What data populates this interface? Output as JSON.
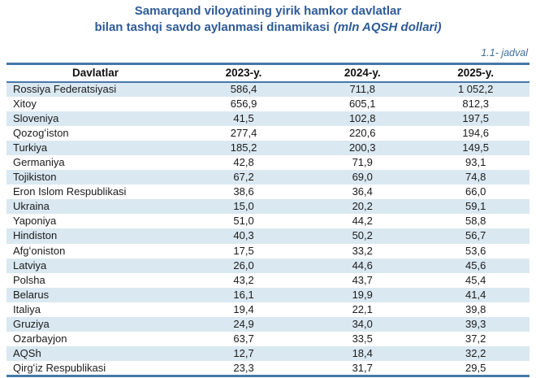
{
  "header": {
    "title_line1": "Samarqand viloyatining yirik hamkor davlatlar",
    "title_line2": "bilan tashqi savdo aylanmasi dinamikasi",
    "title_line2_em": "(mln AQSH dollari)",
    "table_label": "1.1- jadval"
  },
  "colors": {
    "title_blue": "#2E5B97",
    "border_blue": "#4678A8",
    "stripe_blue": "#DAE8F1"
  },
  "chart_data": {
    "type": "table",
    "title": "Samarqand viloyatining yirik hamkor davlatlar bilan tashqi savdo aylanmasi dinamikasi (mln AQSH dollari)",
    "columns": [
      "Davlatlar",
      "2023-y.",
      "2024-y.",
      "2025-y."
    ],
    "rows": [
      {
        "country": "Rossiya Federatsiyasi",
        "values": [
          "586,4",
          "711,8",
          "1 052,2"
        ]
      },
      {
        "country": "Xitoy",
        "values": [
          "656,9",
          "605,1",
          "812,3"
        ]
      },
      {
        "country": "Sloveniya",
        "values": [
          "41,5",
          "102,8",
          "197,5"
        ]
      },
      {
        "country": "Qozogʻiston",
        "values": [
          "277,4",
          "220,6",
          "194,6"
        ]
      },
      {
        "country": "Turkiya",
        "values": [
          "185,2",
          "200,3",
          "149,5"
        ]
      },
      {
        "country": "Germaniya",
        "values": [
          "42,8",
          "71,9",
          "93,1"
        ]
      },
      {
        "country": "Tojikiston",
        "values": [
          "67,2",
          "69,0",
          "74,8"
        ]
      },
      {
        "country": "Eron Islom Respublikasi",
        "values": [
          "38,6",
          "36,4",
          "66,0"
        ]
      },
      {
        "country": "Ukraina",
        "values": [
          "15,0",
          "20,2",
          "59,1"
        ]
      },
      {
        "country": "Yaponiya",
        "values": [
          "51,0",
          "44,2",
          "58,8"
        ]
      },
      {
        "country": "Hindiston",
        "values": [
          "40,3",
          "50,2",
          "56,7"
        ]
      },
      {
        "country": "Afgʻoniston",
        "values": [
          "17,5",
          "33,2",
          "53,6"
        ]
      },
      {
        "country": "Latviya",
        "values": [
          "26,0",
          "44,6",
          "45,6"
        ]
      },
      {
        "country": "Polsha",
        "values": [
          "43,2",
          "43,7",
          "45,4"
        ]
      },
      {
        "country": "Belarus",
        "values": [
          "16,1",
          "19,9",
          "41,4"
        ]
      },
      {
        "country": "Italiya",
        "values": [
          "19,4",
          "22,1",
          "39,8"
        ]
      },
      {
        "country": "Gruziya",
        "values": [
          "24,9",
          "34,0",
          "39,3"
        ]
      },
      {
        "country": "Ozarbayjon",
        "values": [
          "63,7",
          "33,5",
          "37,2"
        ]
      },
      {
        "country": "AQSh",
        "values": [
          "12,7",
          "18,4",
          "32,2"
        ]
      },
      {
        "country": "Qirgʻiz Respublikasi",
        "values": [
          "23,3",
          "31,7",
          "29,5"
        ]
      }
    ]
  }
}
